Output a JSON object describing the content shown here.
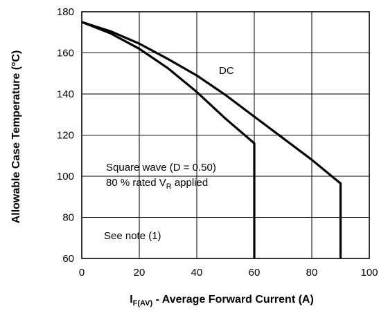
{
  "chart_data": {
    "type": "line",
    "title": "",
    "xlabel": {
      "main": "I",
      "sub": "F(AV)",
      "rest": " - Average Forward Current (A)"
    },
    "ylabel": "Allowable Case Temperature (°C)",
    "xlim": [
      0,
      100
    ],
    "ylim": [
      60,
      180
    ],
    "x_ticks": [
      "0",
      "20",
      "40",
      "60",
      "80",
      "100"
    ],
    "y_ticks": [
      "60",
      "80",
      "100",
      "120",
      "140",
      "160",
      "180"
    ],
    "x_tick_values": [
      0,
      20,
      40,
      60,
      80,
      100
    ],
    "y_tick_values": [
      60,
      80,
      100,
      120,
      140,
      160,
      180
    ],
    "grid": true,
    "series": [
      {
        "name": "DC",
        "x": [
          0,
          10,
          20,
          30,
          40,
          50,
          60,
          70,
          80,
          90,
          90
        ],
        "y": [
          175,
          170.5,
          164.5,
          157,
          149,
          139.5,
          129,
          118.5,
          108,
          96.5,
          60
        ]
      },
      {
        "name": "Square wave",
        "x": [
          0,
          10,
          20,
          30,
          40,
          50,
          60,
          60
        ],
        "y": [
          175,
          169.5,
          162,
          152.5,
          141,
          128,
          116,
          60
        ]
      }
    ],
    "annotations": {
      "dc_label": "DC",
      "square_line1": "Square wave (D = 0.50)",
      "square_line2_a": "80 % rated V",
      "square_line2_sub": "R",
      "square_line2_b": " applied",
      "note": "See note (1)"
    }
  }
}
